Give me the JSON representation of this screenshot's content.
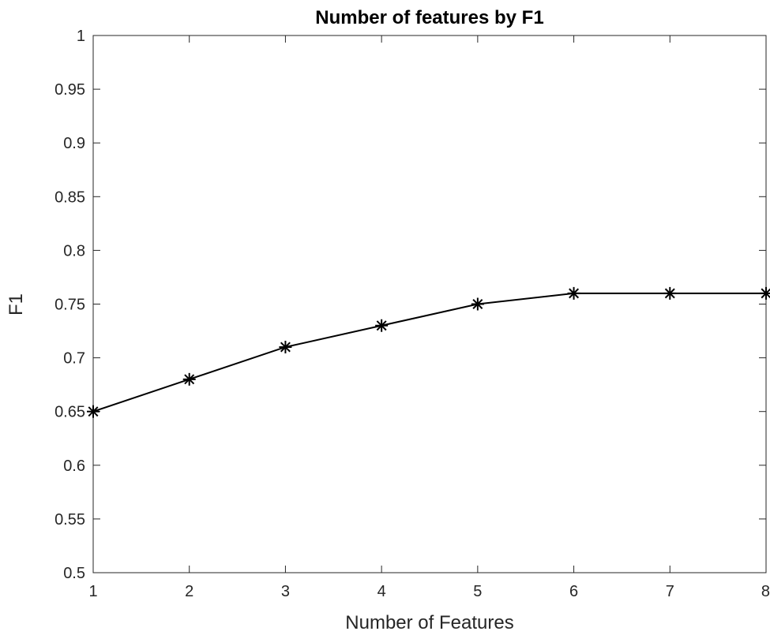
{
  "chart_data": {
    "type": "line",
    "title": "Number of features by F1",
    "xlabel": "Number of Features",
    "ylabel": "F1",
    "xlim": [
      1,
      8
    ],
    "ylim": [
      0.5,
      1
    ],
    "x_ticks": [
      1,
      2,
      3,
      4,
      5,
      6,
      7,
      8
    ],
    "x_tick_labels": [
      "1",
      "2",
      "3",
      "4",
      "5",
      "6",
      "7",
      "8"
    ],
    "y_ticks": [
      0.5,
      0.55,
      0.6,
      0.65,
      0.7,
      0.75,
      0.8,
      0.85,
      0.9,
      0.95,
      1
    ],
    "y_tick_labels": [
      "0.5",
      "0.55",
      "0.6",
      "0.65",
      "0.7",
      "0.75",
      "0.8",
      "0.85",
      "0.9",
      "0.95",
      "1"
    ],
    "grid": false,
    "marker": "asterisk",
    "line_color": "#000000",
    "series": [
      {
        "x": [
          1,
          2,
          3,
          4,
          5,
          6,
          7,
          8
        ],
        "values": [
          0.65,
          0.68,
          0.71,
          0.73,
          0.75,
          0.76,
          0.76,
          0.76
        ]
      }
    ]
  }
}
